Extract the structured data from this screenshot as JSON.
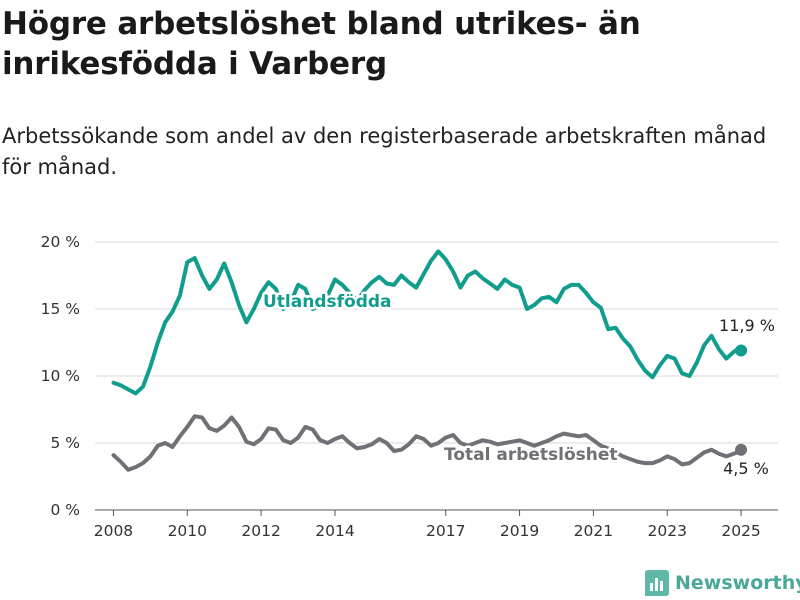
{
  "header": {
    "title": "Högre arbetslöshet bland utrikes- än inrikesfödda i Varberg",
    "subtitle": "Arbetssökande som andel av den registerbaserade arbetskraften månad för månad."
  },
  "brand": {
    "name": "Newsworthy",
    "icon": "bar-chart-logo-icon",
    "color": "#4aa897"
  },
  "chart_data": {
    "type": "line",
    "title": "Högre arbetslöshet bland utrikes- än inrikesfödda i Varberg",
    "subtitle": "Arbetssökande som andel av den registerbaserade arbetskraften månad för månad.",
    "xlabel": "",
    "ylabel": "",
    "xlim": [
      2007.5,
      2026.0
    ],
    "ylim": [
      0,
      20
    ],
    "x_ticks": [
      2008,
      2010,
      2012,
      2014,
      2017,
      2019,
      2021,
      2023,
      2025
    ],
    "x_tick_labels": [
      "2008",
      "2010",
      "2012",
      "2014",
      "2017",
      "2019",
      "2021",
      "2023",
      "2025"
    ],
    "y_ticks": [
      0,
      5,
      10,
      15,
      20
    ],
    "y_tick_labels": [
      "0 %",
      "5 %",
      "10 %",
      "15 %",
      "20 %"
    ],
    "grid": "horizontal",
    "series": [
      {
        "name": "Utlandsfödda",
        "color": "#119d8e",
        "end_label": "11,9 %",
        "points": [
          [
            2008.0,
            9.5
          ],
          [
            2008.2,
            9.3
          ],
          [
            2008.4,
            9.0
          ],
          [
            2008.6,
            8.7
          ],
          [
            2008.8,
            9.2
          ],
          [
            2009.0,
            10.7
          ],
          [
            2009.2,
            12.5
          ],
          [
            2009.4,
            14.0
          ],
          [
            2009.6,
            14.8
          ],
          [
            2009.8,
            16.0
          ],
          [
            2010.0,
            18.5
          ],
          [
            2010.2,
            18.8
          ],
          [
            2010.4,
            17.5
          ],
          [
            2010.6,
            16.5
          ],
          [
            2010.8,
            17.2
          ],
          [
            2011.0,
            18.4
          ],
          [
            2011.2,
            17.0
          ],
          [
            2011.4,
            15.3
          ],
          [
            2011.6,
            14.0
          ],
          [
            2011.8,
            15.0
          ],
          [
            2012.0,
            16.2
          ],
          [
            2012.2,
            17.0
          ],
          [
            2012.4,
            16.5
          ],
          [
            2012.6,
            15.0
          ],
          [
            2012.8,
            15.5
          ],
          [
            2013.0,
            16.8
          ],
          [
            2013.2,
            16.5
          ],
          [
            2013.4,
            15.0
          ],
          [
            2013.6,
            15.3
          ],
          [
            2013.8,
            16.0
          ],
          [
            2014.0,
            17.2
          ],
          [
            2014.2,
            16.8
          ],
          [
            2014.4,
            16.2
          ],
          [
            2014.6,
            15.6
          ],
          [
            2014.8,
            16.4
          ],
          [
            2015.0,
            17.0
          ],
          [
            2015.2,
            17.4
          ],
          [
            2015.4,
            16.9
          ],
          [
            2015.6,
            16.8
          ],
          [
            2015.8,
            17.5
          ],
          [
            2016.0,
            17.0
          ],
          [
            2016.2,
            16.6
          ],
          [
            2016.4,
            17.6
          ],
          [
            2016.6,
            18.6
          ],
          [
            2016.8,
            19.3
          ],
          [
            2017.0,
            18.7
          ],
          [
            2017.2,
            17.8
          ],
          [
            2017.4,
            16.6
          ],
          [
            2017.6,
            17.5
          ],
          [
            2017.8,
            17.8
          ],
          [
            2018.0,
            17.3
          ],
          [
            2018.2,
            16.9
          ],
          [
            2018.4,
            16.5
          ],
          [
            2018.6,
            17.2
          ],
          [
            2018.8,
            16.8
          ],
          [
            2019.0,
            16.6
          ],
          [
            2019.2,
            15.0
          ],
          [
            2019.4,
            15.3
          ],
          [
            2019.6,
            15.8
          ],
          [
            2019.8,
            15.9
          ],
          [
            2020.0,
            15.5
          ],
          [
            2020.2,
            16.5
          ],
          [
            2020.4,
            16.8
          ],
          [
            2020.6,
            16.8
          ],
          [
            2020.8,
            16.2
          ],
          [
            2021.0,
            15.5
          ],
          [
            2021.2,
            15.1
          ],
          [
            2021.4,
            13.5
          ],
          [
            2021.6,
            13.6
          ],
          [
            2021.8,
            12.8
          ],
          [
            2022.0,
            12.2
          ],
          [
            2022.2,
            11.2
          ],
          [
            2022.4,
            10.4
          ],
          [
            2022.6,
            9.9
          ],
          [
            2022.8,
            10.8
          ],
          [
            2023.0,
            11.5
          ],
          [
            2023.2,
            11.3
          ],
          [
            2023.4,
            10.2
          ],
          [
            2023.6,
            10.0
          ],
          [
            2023.8,
            11.0
          ],
          [
            2024.0,
            12.3
          ],
          [
            2024.2,
            13.0
          ],
          [
            2024.4,
            12.0
          ],
          [
            2024.6,
            11.3
          ],
          [
            2024.8,
            11.8
          ],
          [
            2024.9,
            12.0
          ],
          [
            2025.0,
            11.9
          ]
        ]
      },
      {
        "name": "Total arbetslöshet",
        "color": "#707077",
        "end_label": "4,5 %",
        "points": [
          [
            2008.0,
            4.1
          ],
          [
            2008.2,
            3.6
          ],
          [
            2008.4,
            3.0
          ],
          [
            2008.6,
            3.2
          ],
          [
            2008.8,
            3.5
          ],
          [
            2009.0,
            4.0
          ],
          [
            2009.2,
            4.8
          ],
          [
            2009.4,
            5.0
          ],
          [
            2009.6,
            4.7
          ],
          [
            2009.8,
            5.5
          ],
          [
            2010.0,
            6.2
          ],
          [
            2010.2,
            7.0
          ],
          [
            2010.4,
            6.9
          ],
          [
            2010.6,
            6.1
          ],
          [
            2010.8,
            5.9
          ],
          [
            2011.0,
            6.3
          ],
          [
            2011.2,
            6.9
          ],
          [
            2011.4,
            6.2
          ],
          [
            2011.6,
            5.1
          ],
          [
            2011.8,
            4.9
          ],
          [
            2012.0,
            5.3
          ],
          [
            2012.2,
            6.1
          ],
          [
            2012.4,
            6.0
          ],
          [
            2012.6,
            5.2
          ],
          [
            2012.8,
            5.0
          ],
          [
            2013.0,
            5.4
          ],
          [
            2013.2,
            6.2
          ],
          [
            2013.4,
            6.0
          ],
          [
            2013.6,
            5.2
          ],
          [
            2013.8,
            5.0
          ],
          [
            2014.0,
            5.3
          ],
          [
            2014.2,
            5.5
          ],
          [
            2014.4,
            5.0
          ],
          [
            2014.6,
            4.6
          ],
          [
            2014.8,
            4.7
          ],
          [
            2015.0,
            4.9
          ],
          [
            2015.2,
            5.3
          ],
          [
            2015.4,
            5.0
          ],
          [
            2015.6,
            4.4
          ],
          [
            2015.8,
            4.5
          ],
          [
            2016.0,
            4.9
          ],
          [
            2016.2,
            5.5
          ],
          [
            2016.4,
            5.3
          ],
          [
            2016.6,
            4.8
          ],
          [
            2016.8,
            5.0
          ],
          [
            2017.0,
            5.4
          ],
          [
            2017.2,
            5.6
          ],
          [
            2017.4,
            5.0
          ],
          [
            2017.6,
            4.8
          ],
          [
            2017.8,
            5.0
          ],
          [
            2018.0,
            5.2
          ],
          [
            2018.2,
            5.1
          ],
          [
            2018.4,
            4.9
          ],
          [
            2018.6,
            5.0
          ],
          [
            2018.8,
            5.1
          ],
          [
            2019.0,
            5.2
          ],
          [
            2019.2,
            5.0
          ],
          [
            2019.4,
            4.8
          ],
          [
            2019.6,
            5.0
          ],
          [
            2019.8,
            5.2
          ],
          [
            2020.0,
            5.5
          ],
          [
            2020.2,
            5.7
          ],
          [
            2020.4,
            5.6
          ],
          [
            2020.6,
            5.5
          ],
          [
            2020.8,
            5.6
          ],
          [
            2021.0,
            5.2
          ],
          [
            2021.2,
            4.8
          ],
          [
            2021.4,
            4.6
          ],
          [
            2021.6,
            4.3
          ],
          [
            2021.8,
            4.0
          ],
          [
            2022.0,
            3.8
          ],
          [
            2022.2,
            3.6
          ],
          [
            2022.4,
            3.5
          ],
          [
            2022.6,
            3.5
          ],
          [
            2022.8,
            3.7
          ],
          [
            2023.0,
            4.0
          ],
          [
            2023.2,
            3.8
          ],
          [
            2023.4,
            3.4
          ],
          [
            2023.6,
            3.5
          ],
          [
            2023.8,
            3.9
          ],
          [
            2024.0,
            4.3
          ],
          [
            2024.2,
            4.5
          ],
          [
            2024.4,
            4.2
          ],
          [
            2024.6,
            4.0
          ],
          [
            2024.8,
            4.2
          ],
          [
            2024.9,
            4.3
          ],
          [
            2025.0,
            4.5
          ]
        ]
      }
    ]
  }
}
